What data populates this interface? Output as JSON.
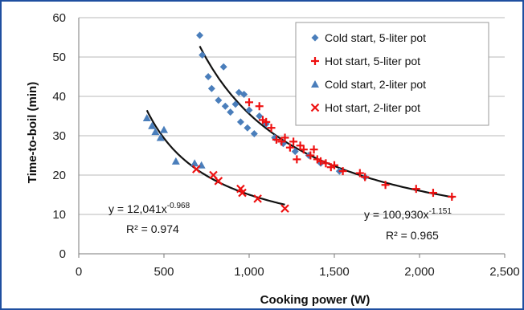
{
  "chart_data": {
    "type": "scatter",
    "xlabel": "Cooking power (W)",
    "ylabel": "Time-to-boil (min)",
    "xlim": [
      0,
      2500
    ],
    "ylim": [
      0,
      60
    ],
    "x_ticks": [
      "0",
      "500",
      "1,000",
      "1,500",
      "2,000",
      "2,500"
    ],
    "y_ticks": [
      "0",
      "10",
      "20",
      "30",
      "40",
      "50",
      "60"
    ],
    "grid": "horizontal",
    "legend_position": "top-right",
    "series": [
      {
        "name": "Cold start, 5-liter pot",
        "marker": "diamond",
        "color": "#4a7ebb",
        "points": [
          [
            710,
            55.5
          ],
          [
            725,
            50.5
          ],
          [
            760,
            45
          ],
          [
            780,
            42
          ],
          [
            820,
            39
          ],
          [
            850,
            47.5
          ],
          [
            860,
            37.5
          ],
          [
            890,
            36
          ],
          [
            920,
            38
          ],
          [
            940,
            41
          ],
          [
            950,
            33.5
          ],
          [
            970,
            40.5
          ],
          [
            990,
            32
          ],
          [
            1000,
            36.5
          ],
          [
            1030,
            30.5
          ],
          [
            1060,
            35
          ],
          [
            1100,
            33
          ],
          [
            1150,
            29.5
          ],
          [
            1200,
            28
          ],
          [
            1270,
            26
          ],
          [
            1350,
            25
          ],
          [
            1420,
            23
          ],
          [
            1530,
            21
          ],
          [
            1680,
            19.5
          ]
        ]
      },
      {
        "name": "Hot start, 5-liter pot",
        "marker": "plus",
        "color": "#ee1111",
        "points": [
          [
            1000,
            38.5
          ],
          [
            1060,
            37.5
          ],
          [
            1080,
            34
          ],
          [
            1100,
            33.5
          ],
          [
            1130,
            32
          ],
          [
            1160,
            29
          ],
          [
            1190,
            28.5
          ],
          [
            1210,
            29.5
          ],
          [
            1240,
            27
          ],
          [
            1260,
            28.5
          ],
          [
            1280,
            24
          ],
          [
            1300,
            27.5
          ],
          [
            1320,
            26.5
          ],
          [
            1360,
            25
          ],
          [
            1380,
            26.5
          ],
          [
            1400,
            24
          ],
          [
            1420,
            23.5
          ],
          [
            1450,
            23
          ],
          [
            1480,
            22
          ],
          [
            1500,
            22.5
          ],
          [
            1550,
            21
          ],
          [
            1650,
            20.5
          ],
          [
            1680,
            19.5
          ],
          [
            1800,
            17.5
          ],
          [
            1980,
            16.5
          ],
          [
            2080,
            15.5
          ],
          [
            2190,
            14.5
          ]
        ]
      },
      {
        "name": "Cold start, 2-liter pot",
        "marker": "triangle",
        "color": "#4a7ebb",
        "points": [
          [
            400,
            34.5
          ],
          [
            430,
            32.5
          ],
          [
            450,
            31
          ],
          [
            480,
            29.5
          ],
          [
            500,
            31.5
          ],
          [
            570,
            23.5
          ],
          [
            680,
            23
          ],
          [
            720,
            22.5
          ]
        ]
      },
      {
        "name": "Hot start, 2-liter pot",
        "marker": "x",
        "color": "#ee1111",
        "points": [
          [
            690,
            21.5
          ],
          [
            790,
            20
          ],
          [
            820,
            18.5
          ],
          [
            950,
            16.5
          ],
          [
            960,
            15.5
          ],
          [
            1050,
            14
          ],
          [
            1210,
            11.5
          ]
        ]
      }
    ],
    "fits": [
      {
        "a": 100930,
        "b": -1.151,
        "x_range": [
          710,
          2200
        ],
        "equation_base": "y = 100,930x",
        "equation_exp": "-1.151",
        "r2": "R² = 0.965"
      },
      {
        "a": 12041,
        "b": -0.968,
        "x_range": [
          400,
          1210
        ],
        "equation_base": "y = 12,041x",
        "equation_exp": "-0.968",
        "r2": "R² = 0.974"
      }
    ]
  }
}
